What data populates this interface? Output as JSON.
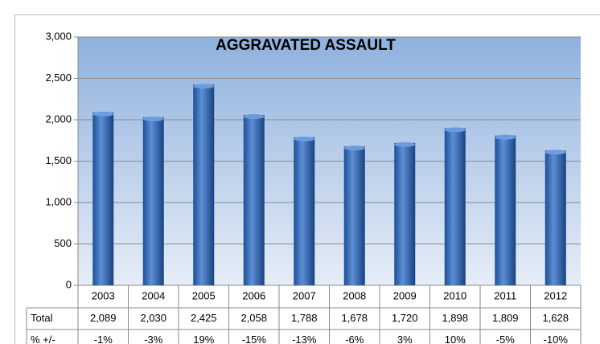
{
  "chart_data": {
    "type": "bar",
    "title": "AGGRAVATED ASSAULT",
    "categories": [
      "2003",
      "2004",
      "2005",
      "2006",
      "2007",
      "2008",
      "2009",
      "2010",
      "2011",
      "2012"
    ],
    "values": [
      2089,
      2030,
      2425,
      2058,
      1788,
      1678,
      1720,
      1898,
      1809,
      1628
    ],
    "value_labels": [
      "2,089",
      "2,030",
      "2,425",
      "2,058",
      "1,788",
      "1,678",
      "1,720",
      "1,898",
      "1,809",
      "1,628"
    ],
    "color": "#2f63b0",
    "ylim": [
      0,
      3000
    ],
    "yticks": [
      0,
      500,
      {
        "value": 1000,
        "label": "1,000"
      },
      {
        "value": 1500,
        "label": "1,500"
      },
      {
        "value": 2000,
        "label": "2,000"
      },
      {
        "value": 2500,
        "label": "2,500"
      },
      {
        "value": 3000,
        "label": "3,000"
      }
    ],
    "grid": true,
    "data_table": {
      "total_label": "Total",
      "change_label": "% +/-",
      "change": [
        "-1%",
        "-3%",
        "19%",
        "-15%",
        "-13%",
        "-6%",
        "3%",
        "10%",
        "-5%",
        "-10%"
      ]
    }
  }
}
